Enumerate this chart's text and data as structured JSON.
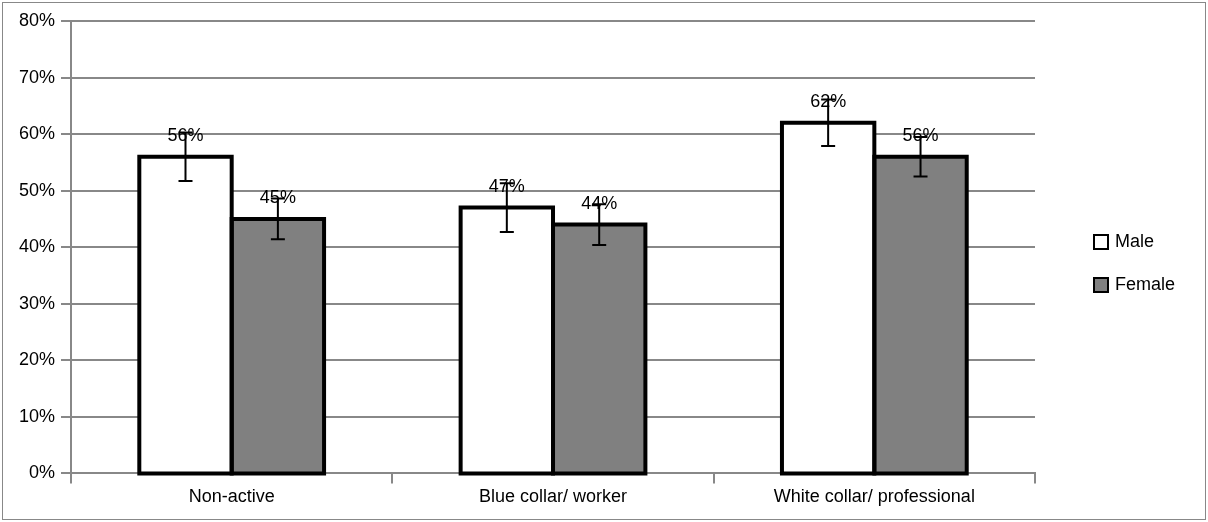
{
  "chart_data": {
    "type": "bar",
    "categories": [
      "Non-active",
      "Blue collar/ worker",
      "White collar/ professional"
    ],
    "series": [
      {
        "name": "Male",
        "color": "#ffffff",
        "values": [
          56,
          47,
          62
        ],
        "errors": [
          4.3,
          4.3,
          4.1
        ],
        "value_labels": [
          "56%",
          "47%",
          "62%"
        ]
      },
      {
        "name": "Female",
        "color": "#808080",
        "values": [
          45,
          44,
          56
        ],
        "errors": [
          3.6,
          3.6,
          3.5
        ],
        "value_labels": [
          "45%",
          "44%",
          "56%"
        ]
      }
    ],
    "ylim": [
      0,
      80
    ],
    "yticks": [
      {
        "value": 0,
        "label": "0%"
      },
      {
        "value": 10,
        "label": "10%"
      },
      {
        "value": 20,
        "label": "20%"
      },
      {
        "value": 30,
        "label": "30%"
      },
      {
        "value": 40,
        "label": "40%"
      },
      {
        "value": 50,
        "label": "50%"
      },
      {
        "value": 60,
        "label": "60%"
      },
      {
        "value": 70,
        "label": "70%"
      },
      {
        "value": 80,
        "label": "80%"
      }
    ],
    "grid": "y",
    "legend": "right"
  }
}
